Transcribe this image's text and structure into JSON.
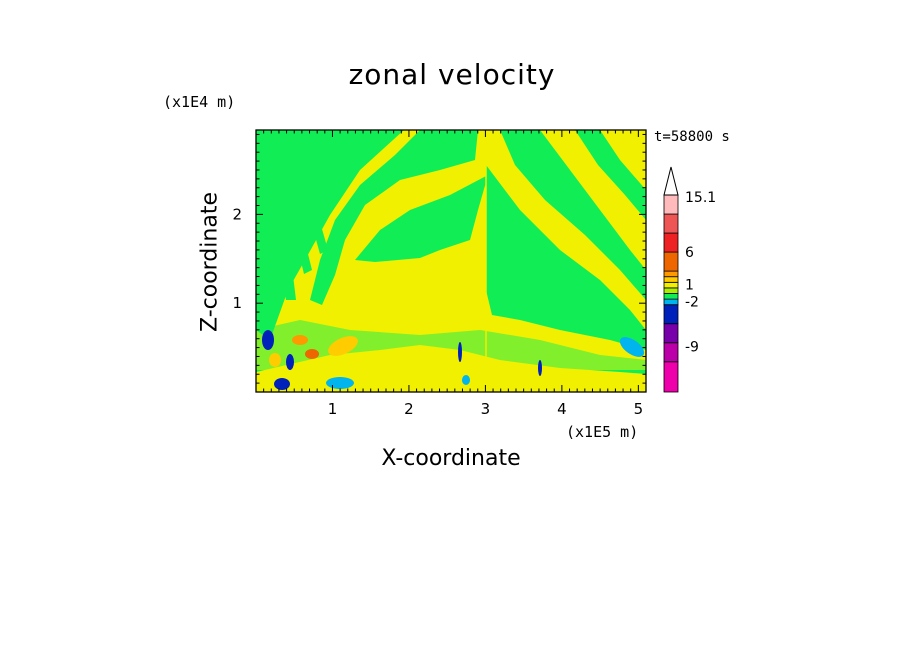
{
  "chart_data": {
    "type": "heatmap",
    "title": "zonal velocity",
    "xlabel": "X-coordinate",
    "ylabel": "Z-coordinate",
    "x_unit": "(x1E5 m)",
    "y_unit": "(x1E4 m)",
    "timestamp": "t=58800 s",
    "xlim": [
      0.0,
      5.1
    ],
    "ylim": [
      0.0,
      2.95
    ],
    "x_ticks": [
      1,
      2,
      3,
      4,
      5
    ],
    "x_tick_labels": [
      "1",
      "2",
      "3",
      "4",
      "5"
    ],
    "y_ticks": [
      1,
      2
    ],
    "y_tick_labels": [
      "1",
      "2"
    ],
    "colorbar": {
      "levels_bottom_to_top": [
        {
          "color": "#ee00aa"
        },
        {
          "color": "#bb00aa"
        },
        {
          "color": "#7700aa"
        },
        {
          "color": "#0022bb"
        },
        {
          "color": "#00b4ee"
        },
        {
          "color": "#11ee55"
        },
        {
          "color": "#aaee00"
        },
        {
          "color": "#f0f000"
        },
        {
          "color": "#ffcc00"
        },
        {
          "color": "#ff9900"
        },
        {
          "color": "#ee6600"
        },
        {
          "color": "#ee2222"
        },
        {
          "color": "#ee5555"
        },
        {
          "color": "#ffbbbb"
        }
      ],
      "tick_labels": [
        "15.1",
        "6",
        "1",
        "-2",
        "-9"
      ],
      "label_values": [
        15.1,
        6,
        1,
        -2,
        -9
      ]
    }
  }
}
